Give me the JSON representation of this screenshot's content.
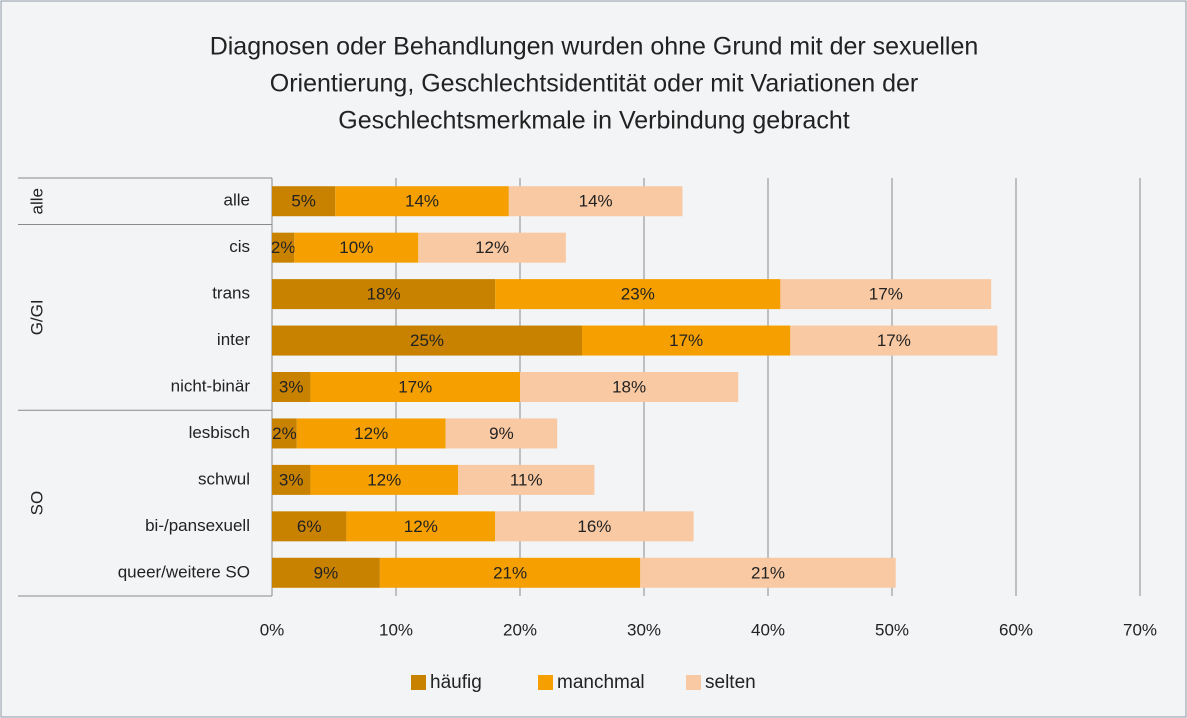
{
  "chart_data": {
    "type": "stacked-bar-horizontal",
    "title": [
      "Diagnosen oder Behandlungen wurden ohne Grund mit der sexuellen",
      "Orientierung, Geschlechtsidentität oder mit Variationen der",
      "Geschlechtsmerkmale in Verbindung gebracht"
    ],
    "groups": [
      {
        "label": "alle",
        "categories": [
          "alle"
        ]
      },
      {
        "label": "G/GI",
        "categories": [
          "cis",
          "trans",
          "inter",
          "nicht-binär"
        ]
      },
      {
        "label": "SO",
        "categories": [
          "lesbisch",
          "schwul",
          "bi-/pansexuell",
          "queer/weitere SO"
        ]
      }
    ],
    "series": [
      {
        "name": "häufig",
        "color": "#c98200",
        "values": [
          5.1,
          1.8,
          18,
          25,
          3.1,
          2,
          3.1,
          6,
          8.7
        ],
        "value_labels": [
          "5%",
          "2%",
          "18%",
          "25%",
          "3%",
          "2%",
          "3%",
          "6%",
          "9%"
        ]
      },
      {
        "name": "manchmal",
        "color": "#f5a000",
        "values": [
          14,
          10,
          23,
          16.8,
          16.9,
          12,
          11.9,
          12,
          21
        ],
        "value_labels": [
          "14%",
          "10%",
          "23%",
          "17%",
          "17%",
          "12%",
          "12%",
          "12%",
          "21%"
        ]
      },
      {
        "name": "selten",
        "color": "#f9c9a3",
        "values": [
          14,
          11.9,
          17,
          16.7,
          17.6,
          9,
          11,
          16,
          20.6
        ],
        "value_labels": [
          "14%",
          "12%",
          "17%",
          "17%",
          "18%",
          "9%",
          "11%",
          "16%",
          "21%"
        ]
      }
    ],
    "xlim": [
      0,
      70
    ],
    "xticks": [
      {
        "value": 0,
        "label": "0%"
      },
      {
        "value": 10,
        "label": "10%"
      },
      {
        "value": 20,
        "label": "20%"
      },
      {
        "value": 30,
        "label": "30%"
      },
      {
        "value": 40,
        "label": "40%"
      },
      {
        "value": 50,
        "label": "50%"
      },
      {
        "value": 60,
        "label": "60%"
      },
      {
        "value": 70,
        "label": "70%"
      }
    ],
    "grid": true,
    "legend": "bottom"
  }
}
